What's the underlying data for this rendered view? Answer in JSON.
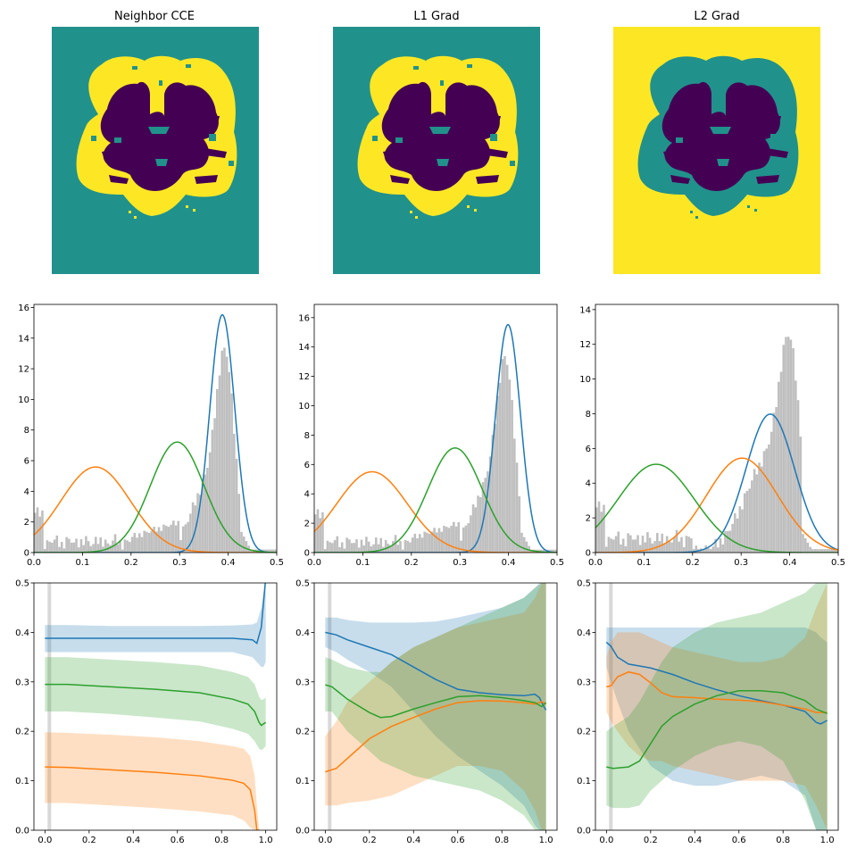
{
  "colors": {
    "blue": "#1f77b4",
    "orange": "#ff7f0e",
    "green": "#2ca02c",
    "hist": "#bfbfbf",
    "viridis_dark": "#440154",
    "viridis_mid": "#21918c",
    "viridis_bright": "#fde725",
    "marker_line": "#d9d9d9"
  },
  "segmentation_panels": [
    {
      "title": "Neighbor CCE",
      "background": "#21918c",
      "brain_fill": "#fde725",
      "matter_fill": "#440154",
      "accent_fill": "#21918c"
    },
    {
      "title": "L1 Grad",
      "background": "#21918c",
      "brain_fill": "#fde725",
      "matter_fill": "#440154",
      "accent_fill": "#21918c"
    },
    {
      "title": "L2 Grad",
      "background": "#fde725",
      "brain_fill": "#21918c",
      "matter_fill": "#440154",
      "accent_fill": "#21918c"
    }
  ],
  "chart_data": [
    {
      "type": "histogram",
      "panel": "Neighbor CCE",
      "xlim": [
        0,
        0.5
      ],
      "ylim": [
        0,
        16.2
      ],
      "x_ticks": [
        "0.0",
        "0.1",
        "0.2",
        "0.3",
        "0.4",
        "0.5"
      ],
      "y_ticks": [
        "0",
        "2",
        "4",
        "6",
        "8",
        "10",
        "12",
        "14",
        "16"
      ],
      "histogram_profile": "a",
      "gaussians": [
        {
          "color": "blue",
          "mean": 0.388,
          "sd": 0.0257,
          "weight": 1.0
        },
        {
          "color": "orange",
          "mean": 0.127,
          "sd": 0.0714,
          "weight": 1.0
        },
        {
          "color": "green",
          "mean": 0.295,
          "sd": 0.0553,
          "weight": 1.0
        }
      ]
    },
    {
      "type": "histogram",
      "panel": "L1 Grad",
      "xlim": [
        0,
        0.5
      ],
      "ylim": [
        0,
        16.9
      ],
      "x_ticks": [
        "0.0",
        "0.1",
        "0.2",
        "0.3",
        "0.4",
        "0.5"
      ],
      "y_ticks": [
        "0",
        "2",
        "4",
        "6",
        "8",
        "10",
        "12",
        "14",
        "16"
      ],
      "histogram_profile": "a",
      "gaussians": [
        {
          "color": "blue",
          "mean": 0.399,
          "sd": 0.0257,
          "weight": 1.0
        },
        {
          "color": "orange",
          "mean": 0.119,
          "sd": 0.0725,
          "weight": 1.0
        },
        {
          "color": "green",
          "mean": 0.29,
          "sd": 0.056,
          "weight": 1.0
        }
      ]
    },
    {
      "type": "histogram",
      "panel": "L2 Grad",
      "xlim": [
        0,
        0.5
      ],
      "ylim": [
        0,
        14.3
      ],
      "x_ticks": [
        "0.0",
        "0.1",
        "0.2",
        "0.3",
        "0.4",
        "0.5"
      ],
      "y_ticks": [
        "0",
        "2",
        "4",
        "6",
        "8",
        "10",
        "12",
        "14"
      ],
      "histogram_profile": "b",
      "gaussians": [
        {
          "color": "blue",
          "mean": 0.36,
          "sd": 0.05,
          "weight": 1.0
        },
        {
          "color": "orange",
          "mean": 0.302,
          "sd": 0.0733,
          "weight": 1.0
        },
        {
          "color": "green",
          "mean": 0.125,
          "sd": 0.0784,
          "weight": 1.0
        }
      ]
    },
    {
      "type": "line",
      "panel": "Neighbor CCE",
      "xlim": [
        -0.05,
        1.05
      ],
      "ylim": [
        0,
        0.5
      ],
      "x_ticks": [
        "0.0",
        "0.2",
        "0.4",
        "0.6",
        "0.8",
        "1.0"
      ],
      "y_ticks": [
        "0.0",
        "0.1",
        "0.2",
        "0.3",
        "0.4",
        "0.5"
      ],
      "vline_x": 0.02,
      "series": [
        {
          "color": "blue",
          "x": [
            0,
            0.1,
            0.3,
            0.5,
            0.7,
            0.85,
            0.94,
            0.96,
            0.98,
            0.99,
            1.0
          ],
          "y": [
            0.388,
            0.388,
            0.388,
            0.388,
            0.388,
            0.388,
            0.385,
            0.378,
            0.41,
            0.46,
            0.51
          ],
          "lower": [
            0.36,
            0.36,
            0.36,
            0.36,
            0.36,
            0.36,
            0.35,
            0.34,
            0.33,
            0.33,
            0.34
          ],
          "upper": [
            0.415,
            0.415,
            0.413,
            0.413,
            0.413,
            0.414,
            0.416,
            0.42,
            0.45,
            0.48,
            0.5
          ]
        },
        {
          "color": "orange",
          "x": [
            0,
            0.1,
            0.3,
            0.5,
            0.7,
            0.85,
            0.9,
            0.93,
            0.95,
            0.96,
            0.97
          ],
          "y": [
            0.128,
            0.127,
            0.122,
            0.117,
            0.11,
            0.101,
            0.095,
            0.082,
            0.04,
            0.0,
            0.0
          ],
          "lower": [
            0.055,
            0.055,
            0.05,
            0.045,
            0.038,
            0.03,
            0.02,
            0.005,
            0.0,
            0.0,
            0.0
          ],
          "upper": [
            0.198,
            0.197,
            0.193,
            0.188,
            0.18,
            0.17,
            0.165,
            0.15,
            0.11,
            0.05,
            0.0
          ]
        },
        {
          "color": "green",
          "x": [
            0,
            0.1,
            0.3,
            0.5,
            0.7,
            0.85,
            0.92,
            0.95,
            0.97,
            0.98,
            0.99,
            1.0
          ],
          "y": [
            0.295,
            0.295,
            0.29,
            0.285,
            0.278,
            0.265,
            0.255,
            0.24,
            0.218,
            0.212,
            0.215,
            0.218
          ],
          "lower": [
            0.24,
            0.24,
            0.235,
            0.228,
            0.22,
            0.205,
            0.195,
            0.18,
            0.165,
            0.162,
            0.165,
            0.17
          ],
          "upper": [
            0.35,
            0.35,
            0.345,
            0.34,
            0.333,
            0.32,
            0.31,
            0.295,
            0.27,
            0.263,
            0.265,
            0.268
          ]
        }
      ]
    },
    {
      "type": "line",
      "panel": "L1 Grad",
      "xlim": [
        -0.05,
        1.05
      ],
      "ylim": [
        0,
        0.5
      ],
      "x_ticks": [
        "0.0",
        "0.2",
        "0.4",
        "0.6",
        "0.8",
        "1.0"
      ],
      "y_ticks": [
        "0.0",
        "0.1",
        "0.2",
        "0.3",
        "0.4",
        "0.5"
      ],
      "vline_x": 0.02,
      "series": [
        {
          "color": "blue",
          "x": [
            0,
            0.05,
            0.1,
            0.2,
            0.3,
            0.4,
            0.5,
            0.6,
            0.7,
            0.8,
            0.9,
            0.95,
            0.97,
            0.99,
            1.0
          ],
          "y": [
            0.4,
            0.395,
            0.385,
            0.37,
            0.355,
            0.33,
            0.305,
            0.285,
            0.278,
            0.274,
            0.272,
            0.275,
            0.268,
            0.25,
            0.243
          ],
          "lower": [
            0.37,
            0.36,
            0.345,
            0.32,
            0.29,
            0.24,
            0.19,
            0.15,
            0.12,
            0.09,
            0.05,
            0.01,
            0.0,
            0.0,
            0.0
          ],
          "upper": [
            0.43,
            0.43,
            0.425,
            0.42,
            0.42,
            0.42,
            0.422,
            0.43,
            0.44,
            0.45,
            0.47,
            0.49,
            0.5,
            0.5,
            0.5
          ]
        },
        {
          "color": "orange",
          "x": [
            0,
            0.05,
            0.1,
            0.2,
            0.3,
            0.4,
            0.5,
            0.6,
            0.7,
            0.8,
            0.9,
            0.95,
            0.98,
            1.0
          ],
          "y": [
            0.118,
            0.125,
            0.145,
            0.185,
            0.21,
            0.228,
            0.245,
            0.258,
            0.262,
            0.261,
            0.258,
            0.255,
            0.26,
            0.255
          ],
          "lower": [
            0.05,
            0.05,
            0.055,
            0.06,
            0.07,
            0.09,
            0.11,
            0.13,
            0.13,
            0.12,
            0.08,
            0.04,
            0.0,
            0.0
          ],
          "upper": [
            0.19,
            0.22,
            0.26,
            0.3,
            0.34,
            0.37,
            0.39,
            0.41,
            0.42,
            0.43,
            0.44,
            0.47,
            0.5,
            0.5
          ]
        },
        {
          "color": "green",
          "x": [
            0,
            0.03,
            0.1,
            0.2,
            0.25,
            0.3,
            0.4,
            0.5,
            0.6,
            0.7,
            0.8,
            0.9,
            0.95,
            0.98,
            1.0
          ],
          "y": [
            0.294,
            0.29,
            0.265,
            0.238,
            0.228,
            0.23,
            0.245,
            0.258,
            0.27,
            0.272,
            0.268,
            0.262,
            0.258,
            0.25,
            0.258
          ],
          "lower": [
            0.24,
            0.24,
            0.2,
            0.16,
            0.14,
            0.13,
            0.11,
            0.1,
            0.09,
            0.08,
            0.06,
            0.03,
            0.0,
            0.0,
            0.0
          ],
          "upper": [
            0.35,
            0.345,
            0.33,
            0.32,
            0.32,
            0.34,
            0.37,
            0.39,
            0.41,
            0.43,
            0.45,
            0.47,
            0.49,
            0.5,
            0.5
          ]
        }
      ]
    },
    {
      "type": "line",
      "panel": "L2 Grad",
      "xlim": [
        -0.05,
        1.05
      ],
      "ylim": [
        0,
        0.5
      ],
      "x_ticks": [
        "0.0",
        "0.2",
        "0.4",
        "0.6",
        "0.8",
        "1.0"
      ],
      "y_ticks": [
        "0.0",
        "0.1",
        "0.2",
        "0.3",
        "0.4",
        "0.5"
      ],
      "vline_x": 0.02,
      "series": [
        {
          "color": "blue",
          "x": [
            0,
            0.02,
            0.05,
            0.1,
            0.2,
            0.3,
            0.4,
            0.5,
            0.6,
            0.7,
            0.8,
            0.9,
            0.95,
            0.97,
            1.0
          ],
          "y": [
            0.38,
            0.372,
            0.35,
            0.336,
            0.328,
            0.315,
            0.298,
            0.284,
            0.272,
            0.262,
            0.253,
            0.24,
            0.218,
            0.215,
            0.222
          ],
          "lower": [
            0.33,
            0.3,
            0.26,
            0.2,
            0.13,
            0.1,
            0.09,
            0.09,
            0.1,
            0.11,
            0.1,
            0.07,
            0.0,
            0.0,
            0.0
          ],
          "upper": [
            0.41,
            0.41,
            0.41,
            0.41,
            0.41,
            0.41,
            0.41,
            0.41,
            0.41,
            0.41,
            0.41,
            0.41,
            0.4,
            0.39,
            0.38
          ]
        },
        {
          "color": "orange",
          "x": [
            0,
            0.02,
            0.05,
            0.1,
            0.15,
            0.2,
            0.25,
            0.3,
            0.4,
            0.5,
            0.6,
            0.7,
            0.8,
            0.9,
            0.95,
            1.0
          ],
          "y": [
            0.29,
            0.292,
            0.31,
            0.32,
            0.315,
            0.298,
            0.278,
            0.27,
            0.268,
            0.265,
            0.263,
            0.26,
            0.253,
            0.245,
            0.238,
            0.238
          ],
          "lower": [
            0.24,
            0.22,
            0.2,
            0.17,
            0.15,
            0.14,
            0.14,
            0.13,
            0.12,
            0.11,
            0.1,
            0.1,
            0.1,
            0.09,
            0.05,
            0.0
          ],
          "upper": [
            0.35,
            0.38,
            0.4,
            0.4,
            0.4,
            0.39,
            0.38,
            0.37,
            0.36,
            0.35,
            0.34,
            0.34,
            0.35,
            0.39,
            0.45,
            0.5
          ]
        },
        {
          "color": "green",
          "x": [
            0,
            0.03,
            0.1,
            0.15,
            0.2,
            0.25,
            0.3,
            0.4,
            0.5,
            0.6,
            0.7,
            0.8,
            0.9,
            0.95,
            1.0
          ],
          "y": [
            0.128,
            0.125,
            0.128,
            0.14,
            0.175,
            0.21,
            0.23,
            0.255,
            0.272,
            0.282,
            0.282,
            0.278,
            0.262,
            0.245,
            0.236
          ],
          "lower": [
            0.05,
            0.045,
            0.045,
            0.05,
            0.08,
            0.1,
            0.12,
            0.15,
            0.17,
            0.18,
            0.17,
            0.14,
            0.06,
            0.0,
            0.0
          ],
          "upper": [
            0.2,
            0.21,
            0.23,
            0.26,
            0.3,
            0.34,
            0.37,
            0.4,
            0.42,
            0.43,
            0.44,
            0.46,
            0.48,
            0.5,
            0.5
          ]
        }
      ]
    }
  ]
}
